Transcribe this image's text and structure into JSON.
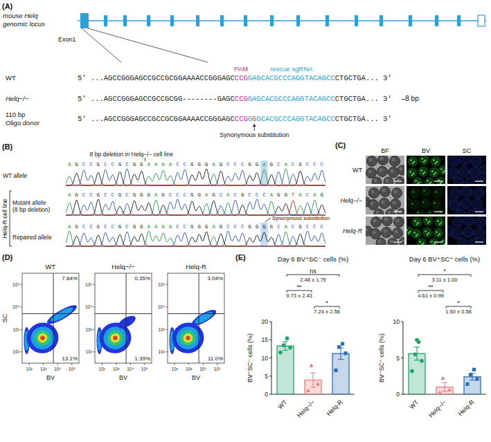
{
  "panel_a": {
    "letter": "(A)",
    "locus_label": [
      "mouse Helq",
      "genomic locus"
    ],
    "exon_label": "Exon1",
    "rows": [
      {
        "label": [
          "WT"
        ],
        "segments": [
          {
            "text": "5' ...AGCCGGGAGCCGCCGCGGAAAACCGGGAGC",
            "color": "#222222"
          },
          {
            "text": "CCG",
            "color": "#e0219b",
            "label": "PAM"
          },
          {
            "text": "GAGCACGCCCAGGTACAGCC",
            "color": "#1fa3d6",
            "label": "rescue sgRNA"
          },
          {
            "text": "CTGCTGA... 3'",
            "color": "#222222"
          }
        ]
      },
      {
        "label": [
          "Helq−/−"
        ],
        "segments": [
          {
            "text": "5' ...AGCCGGGAGCCGCCGCGG--------GAGC",
            "color": "#222222"
          },
          {
            "text": "CCG",
            "color": "#e0219b"
          },
          {
            "text": "GAGCACGCCCAGGTACAGCC",
            "color": "#1fa3d6"
          },
          {
            "text": "CTGCTGA... 3'",
            "color": "#222222"
          }
        ],
        "note": "–8 bp"
      },
      {
        "label": [
          "110 bp",
          "Oligo donor"
        ],
        "segments": [
          {
            "text": "5' ...AGCCGGGAGCCGCCGCGGAAAACCGGGAGC",
            "color": "#222222"
          },
          {
            "text": "CCG",
            "color": "#e0219b"
          },
          {
            "text": "G",
            "color": "#1fa3d6"
          },
          {
            "text": "G",
            "color": "#e53935",
            "label_below": "Synonymous substitution"
          },
          {
            "text": "GCACGCCCAGGTACAGCC",
            "color": "#1fa3d6"
          },
          {
            "text": "CTGCTGA... 3'",
            "color": "#222222"
          }
        ]
      }
    ]
  },
  "panel_b": {
    "letter": "(B)",
    "deletion_note": "8 bp deletion in Helq−/− cell line",
    "group_label": "Helq-R cell line",
    "substitution_note": "Synonymous substitution",
    "traces": [
      {
        "label": [
          "WT allele"
        ],
        "bases": "AGCCGCCGCGGAAAACCGGGAGCCCGGAGCACGCCC"
      },
      {
        "label": [
          "Mutant allele",
          "(8 bp deletion)"
        ],
        "bases": "AGCCGCCGCGGGAGCCCGGAGCACGCCCAGGTACAG"
      },
      {
        "label": [
          "Repaired allele"
        ],
        "bases": "AGCCGCCGCGGAAAACCGGGAGCCCGGGGCACGCCC"
      }
    ]
  },
  "panel_c": {
    "letter": "(C)",
    "columns": [
      "BF",
      "BV",
      "SC"
    ],
    "rows": [
      "WT",
      "Helq−/−",
      "Helq-R"
    ]
  },
  "panel_d": {
    "letter": "(D)",
    "x_label": "BV",
    "y_label": "SC",
    "ticks": [
      "10²",
      "10³",
      "10⁴",
      "10⁵"
    ],
    "plots": [
      {
        "title": "WT",
        "upper_right": "7.84%",
        "lower_right": "13.1%"
      },
      {
        "title": "Helq−/−",
        "upper_right": "0.35%",
        "lower_right": "1.39%"
      },
      {
        "title": "Helq-R",
        "upper_right": "3.04%",
        "lower_right": "11.0%"
      }
    ]
  },
  "panel_e": {
    "letter": "(E)"
  },
  "chart_data": [
    {
      "type": "bar",
      "title": "Day 6 BV⁺SC⁻ cells (%)",
      "y_label": "BV⁺SC⁻ cells (%)",
      "categories": [
        "WT",
        "Helq−/−",
        "Helq-R"
      ],
      "values": [
        13.3,
        3.9,
        11.2
      ],
      "errors": [
        1.2,
        2.0,
        1.6
      ],
      "colors": [
        "#22a36b",
        "#f07c7c",
        "#2c6fb7"
      ],
      "points": [
        [
          11.5,
          12.8,
          13.5,
          15.4
        ],
        [
          1.0,
          2.8,
          7.9
        ],
        [
          6.6,
          11.3,
          13.0,
          13.9
        ]
      ],
      "ylim": [
        0,
        20
      ],
      "yticks": [
        0,
        5,
        10,
        15,
        20
      ],
      "comparisons": [
        {
          "between": [
            0,
            2
          ],
          "label": "ns",
          "difference": "2.48 ± 1.75"
        },
        {
          "between": [
            0,
            1
          ],
          "label": "**",
          "difference": "9.73 ± 2.43"
        },
        {
          "between": [
            1,
            2
          ],
          "label": "*",
          "difference": "7.24 ± 2.58"
        }
      ]
    },
    {
      "type": "bar",
      "title": "Day 6 BV⁺SC⁺ cells (%)",
      "y_label": "BV⁺SC⁺ cells (%)",
      "categories": [
        "WT",
        "Helq−/−",
        "Helq-R"
      ],
      "values": [
        5.6,
        1.0,
        2.4
      ],
      "errors": [
        0.9,
        0.6,
        0.45
      ],
      "colors": [
        "#22a36b",
        "#f07c7c",
        "#2c6fb7"
      ],
      "points": [
        [
          3.2,
          4.6,
          5.5,
          7.2,
          7.5
        ],
        [
          0.2,
          0.6,
          2.2
        ],
        [
          1.4,
          2.1,
          2.7,
          3.4
        ]
      ],
      "ylim": [
        0,
        10
      ],
      "yticks": [
        0,
        5,
        10
      ],
      "comparisons": [
        {
          "between": [
            0,
            2
          ],
          "label": "*",
          "difference": "3.11 ± 1.00"
        },
        {
          "between": [
            0,
            1
          ],
          "label": "**",
          "difference": "4.61 ± 0.99"
        },
        {
          "between": [
            1,
            2
          ],
          "label": "*",
          "difference": "1.50 ± 0.58"
        }
      ]
    }
  ]
}
